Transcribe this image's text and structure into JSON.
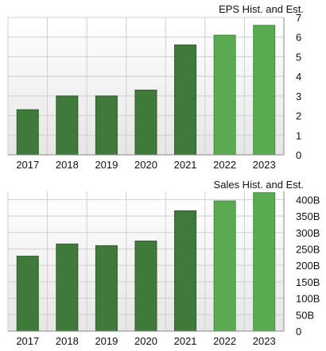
{
  "colors": {
    "historical_bar": "#3f7a3a",
    "historical_bar_edge": "#2e5e2b",
    "estimate_bar": "#5aaa52",
    "estimate_bar_edge": "#468f40",
    "plot_bg_top": "#ffffff",
    "plot_bg_bottom": "#e6e6e6",
    "grid": "#cfcfcf"
  },
  "chart_data": [
    {
      "type": "bar",
      "title": "EPS Hist. and Est.",
      "categories": [
        "2017",
        "2018",
        "2019",
        "2020",
        "2021",
        "2022",
        "2023"
      ],
      "values": [
        2.3,
        3.0,
        3.0,
        3.3,
        5.6,
        6.1,
        6.6
      ],
      "estimate_from_index": 5,
      "ylim": [
        0,
        7
      ],
      "yticks": [
        0,
        1,
        2,
        3,
        4,
        5,
        6,
        7
      ],
      "ytick_labels": [
        "0",
        "1",
        "2",
        "3",
        "4",
        "5",
        "6",
        "7"
      ],
      "y_axis_side": "right",
      "grid": true
    },
    {
      "type": "bar",
      "title": "Sales Hist. and Est.",
      "categories": [
        "2017",
        "2018",
        "2019",
        "2020",
        "2021",
        "2022",
        "2023"
      ],
      "values": [
        228,
        265,
        260,
        274,
        366,
        396,
        421
      ],
      "estimate_from_index": 5,
      "ylim": [
        0,
        425
      ],
      "yticks": [
        0,
        50,
        100,
        150,
        200,
        250,
        300,
        350,
        400
      ],
      "ytick_labels": [
        "0",
        "50B",
        "100B",
        "150B",
        "200B",
        "250B",
        "300B",
        "350B",
        "400B"
      ],
      "y_axis_side": "right",
      "grid": true
    }
  ]
}
